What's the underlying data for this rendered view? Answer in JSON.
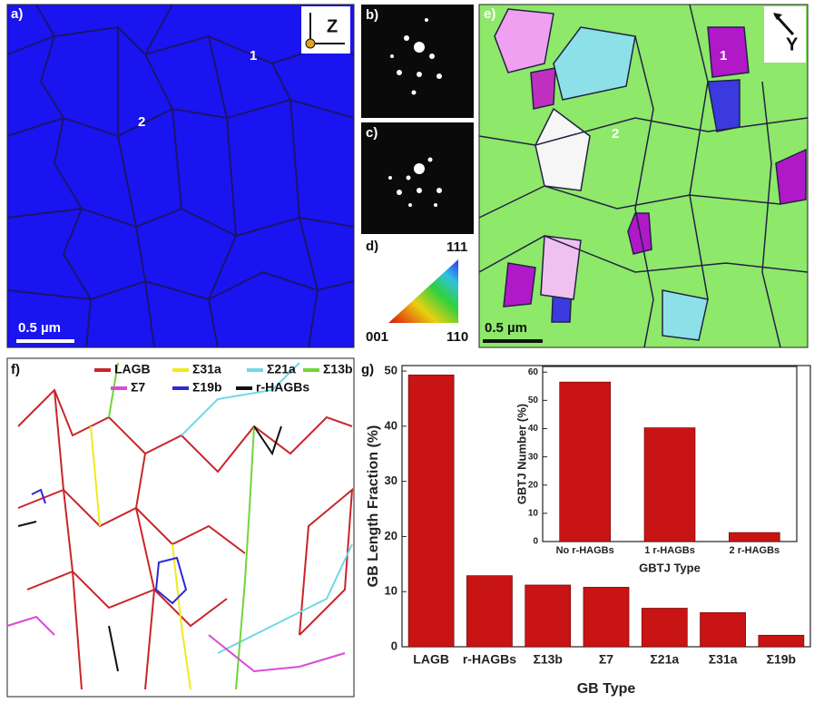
{
  "panels": {
    "a": {
      "label": "a)",
      "axis": "Z",
      "grain_1": "1",
      "grain_2": "2",
      "scale_bar": "0.5 µm"
    },
    "b": {
      "label": "b)"
    },
    "c": {
      "label": "c)"
    },
    "d": {
      "label": "d)",
      "corner_111": "111",
      "corner_001": "001",
      "corner_110": "110"
    },
    "e": {
      "label": "e)",
      "axis": "Y",
      "grain_1": "1",
      "grain_2": "2",
      "scale_bar": "0.5 µm"
    },
    "f": {
      "label": "f)",
      "legend": [
        {
          "name": "LAGB",
          "color": "#c8262a"
        },
        {
          "name": "Σ31a",
          "color": "#f2e81e"
        },
        {
          "name": "Σ21a",
          "color": "#6fd9e6"
        },
        {
          "name": "Σ13b",
          "color": "#6fd63a"
        },
        {
          "name": "Σ7",
          "color": "#d94ad9"
        },
        {
          "name": "Σ19b",
          "color": "#2a2ad9"
        },
        {
          "name": "r-HAGBs",
          "color": "#111111"
        }
      ]
    },
    "g": {
      "label": "g)"
    }
  },
  "chart_data": [
    {
      "type": "bar",
      "x_label": "GB Type",
      "y_label": "GB Length Fraction (%)",
      "categories": [
        "LAGB",
        "r-HAGBs",
        "Σ13b",
        "Σ7",
        "Σ21a",
        "Σ31a",
        "Σ19b"
      ],
      "values": [
        49.3,
        12.9,
        11.2,
        10.8,
        7.0,
        6.2,
        2.1
      ],
      "color": "#c81414",
      "ylim": [
        0,
        51
      ],
      "yticks": [
        0,
        10,
        20,
        30,
        40,
        50
      ]
    },
    {
      "type": "bar",
      "x_label": "GBTJ Type",
      "y_label": "GBTJ Number (%)",
      "categories": [
        "No r-HAGBs",
        "1 r-HAGBs",
        "2 r-HAGBs"
      ],
      "values": [
        56.5,
        40.3,
        3.2
      ],
      "color": "#c81414",
      "ylim": [
        0,
        62
      ],
      "yticks": [
        0,
        10,
        20,
        30,
        40,
        50,
        60
      ]
    }
  ]
}
